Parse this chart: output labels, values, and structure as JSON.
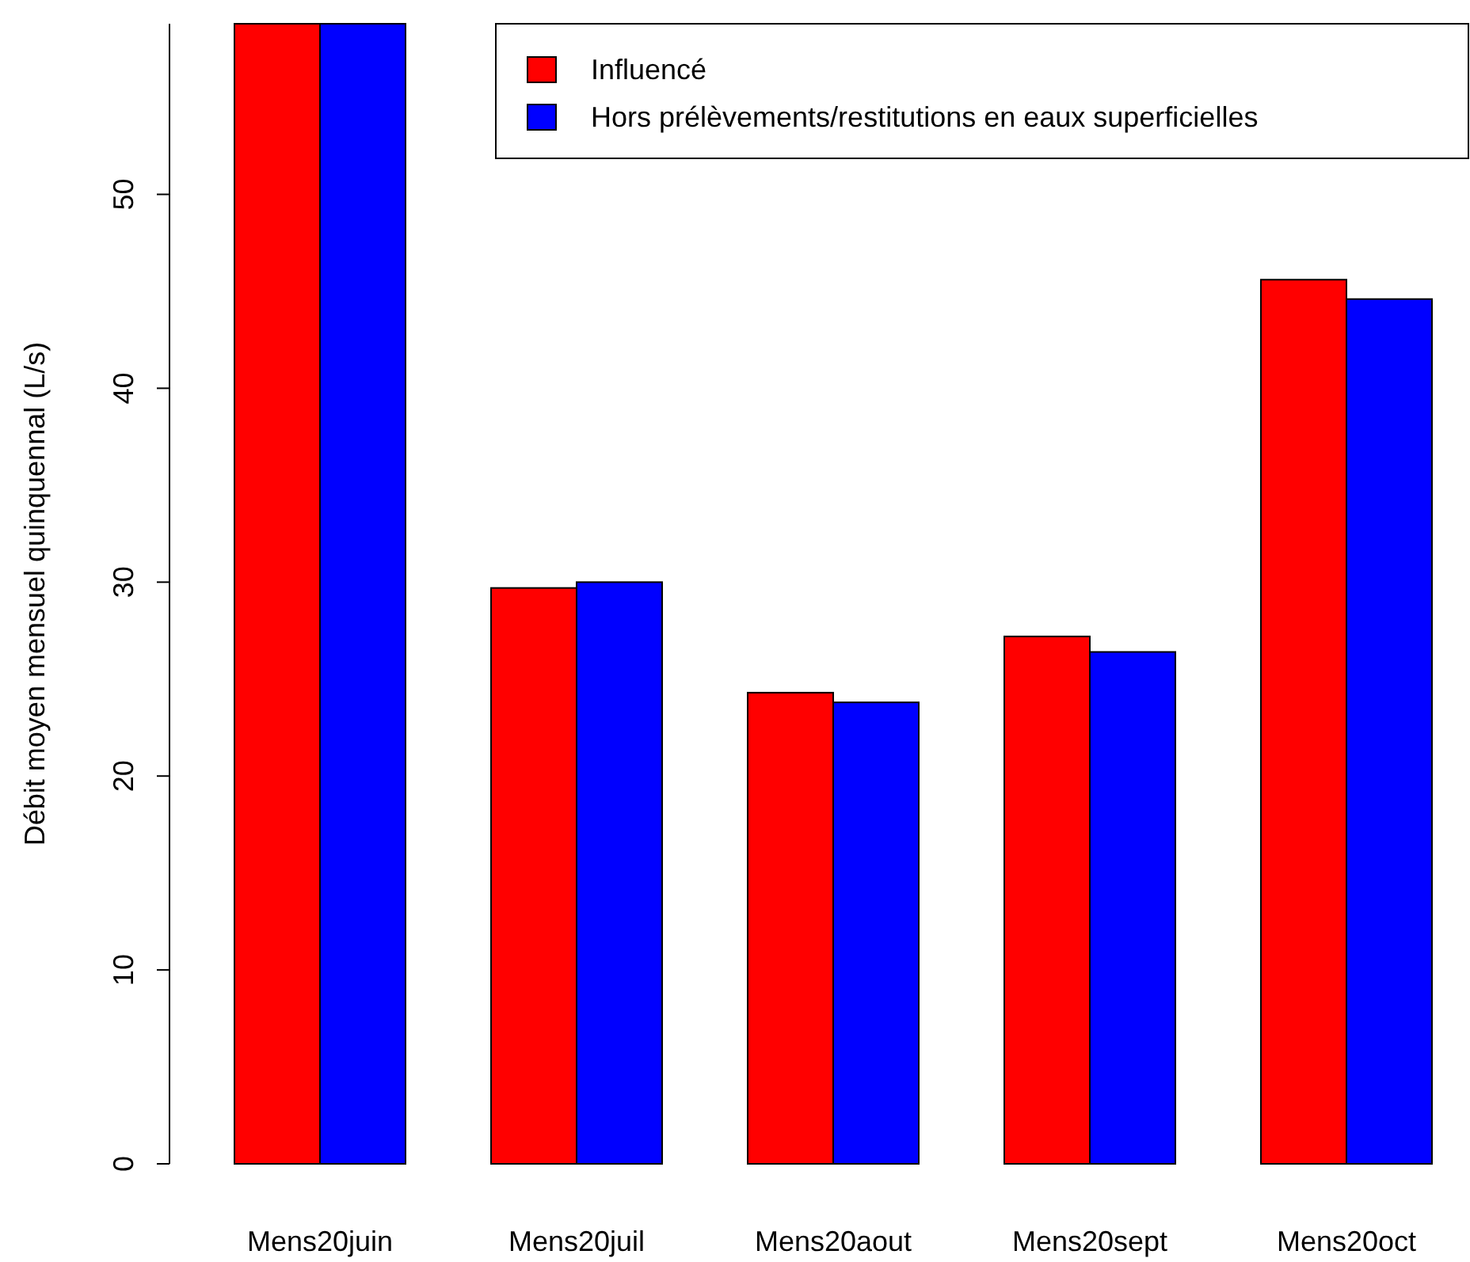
{
  "chart_data": {
    "type": "bar",
    "ylabel": "Débit moyen mensuel quinquennal (L/s)",
    "categories": [
      "Mens20juin",
      "Mens20juil",
      "Mens20aout",
      "Mens20sept",
      "Mens20oct"
    ],
    "series": [
      {
        "name": "Influencé",
        "color": "#ff0000",
        "values": [
          58.8,
          29.7,
          24.3,
          27.2,
          45.6
        ]
      },
      {
        "name": "Hors prélèvements/restitutions en eaux superficielles",
        "color": "#0000ff",
        "values": [
          58.8,
          30.0,
          23.8,
          26.4,
          44.6
        ]
      }
    ],
    "ylim": [
      0,
      58.8
    ],
    "yticks": [
      0,
      10,
      20,
      30,
      40,
      50
    ],
    "legend": "top right",
    "grid": false
  }
}
